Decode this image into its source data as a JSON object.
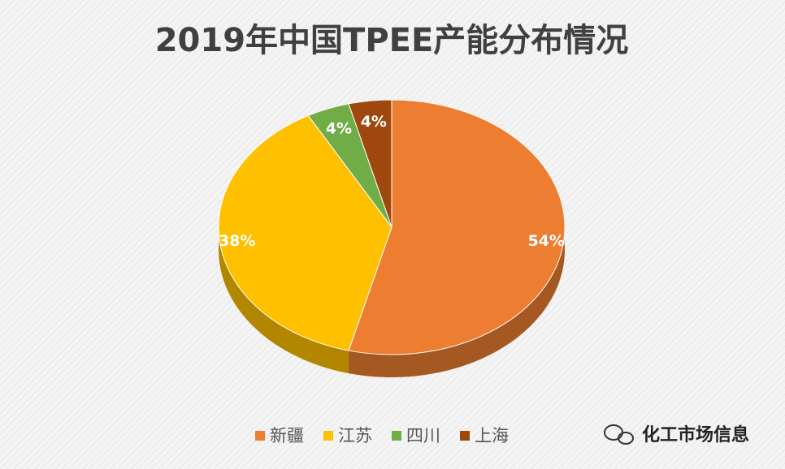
{
  "chart_data": {
    "type": "pie",
    "title": "2019年中国TPEE产能分布情况",
    "categories": [
      "新疆",
      "江苏",
      "四川",
      "上海"
    ],
    "values": [
      54,
      38,
      4,
      4
    ],
    "value_labels": [
      "54%",
      "38%",
      "4%",
      "4%"
    ],
    "colors": [
      "#ED7D31",
      "#FFC000",
      "#70AD47",
      "#9E480E"
    ],
    "legend": "bottom",
    "watermark": "化工市场信息"
  }
}
